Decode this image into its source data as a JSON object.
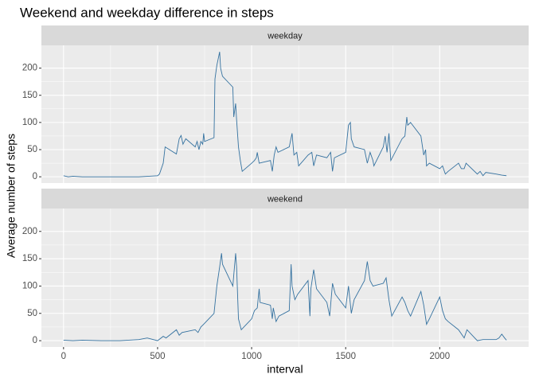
{
  "chart_data": [
    {
      "type": "line",
      "title": "Weekend and weekday difference in steps",
      "ylabel": "Average number of steps",
      "facet": "weekday",
      "xlim": [
        -117.75,
        2472.75
      ],
      "ylim": [
        -11.52,
        241.9
      ],
      "xticks": [
        0,
        500,
        1000,
        1500,
        2000
      ],
      "yticks": [
        0,
        50,
        100,
        150,
        200
      ],
      "grid": true,
      "series": [
        {
          "color": "#3572a0",
          "x": [
            0,
            25,
            50,
            100,
            200,
            300,
            400,
            500,
            510,
            530,
            540,
            600,
            615,
            625,
            635,
            650,
            700,
            710,
            720,
            730,
            740,
            745,
            750,
            800,
            805,
            815,
            830,
            835,
            845,
            900,
            905,
            915,
            920,
            930,
            940,
            950,
            1000,
            1015,
            1025,
            1030,
            1040,
            1100,
            1110,
            1120,
            1130,
            1140,
            1200,
            1215,
            1225,
            1240,
            1250,
            1300,
            1320,
            1330,
            1345,
            1400,
            1420,
            1430,
            1440,
            1500,
            1515,
            1525,
            1530,
            1545,
            1600,
            1615,
            1630,
            1645,
            1650,
            1700,
            1710,
            1720,
            1730,
            1740,
            1800,
            1815,
            1825,
            1830,
            1845,
            1900,
            1915,
            1925,
            1930,
            1945,
            2000,
            2015,
            2030,
            2045,
            2100,
            2115,
            2130,
            2140,
            2200,
            2215,
            2230,
            2245,
            2300,
            2330,
            2355
          ],
          "values": [
            2,
            0,
            1,
            0,
            0,
            0,
            0,
            2,
            5,
            25,
            55,
            42,
            70,
            76,
            60,
            70,
            55,
            65,
            50,
            65,
            60,
            80,
            65,
            72,
            180,
            205,
            230,
            200,
            185,
            165,
            110,
            135,
            105,
            55,
            30,
            10,
            25,
            30,
            35,
            45,
            25,
            30,
            10,
            40,
            55,
            45,
            55,
            80,
            40,
            45,
            20,
            40,
            45,
            20,
            40,
            35,
            45,
            10,
            35,
            45,
            95,
            100,
            70,
            55,
            50,
            25,
            45,
            30,
            20,
            55,
            75,
            45,
            80,
            30,
            70,
            75,
            110,
            95,
            100,
            75,
            40,
            50,
            20,
            25,
            15,
            20,
            5,
            10,
            25,
            15,
            15,
            25,
            5,
            10,
            2,
            8,
            5,
            3,
            2
          ]
        }
      ]
    },
    {
      "type": "line",
      "xlabel": "interval",
      "facet": "weekend",
      "xlim": [
        -117.75,
        2472.75
      ],
      "ylim": [
        -11.52,
        241.9
      ],
      "xticks": [
        0,
        500,
        1000,
        1500,
        2000
      ],
      "yticks": [
        0,
        50,
        100,
        150,
        200
      ],
      "grid": true,
      "series": [
        {
          "color": "#3572a0",
          "x": [
            0,
            50,
            100,
            200,
            300,
            400,
            445,
            500,
            530,
            545,
            600,
            615,
            630,
            700,
            715,
            730,
            745,
            800,
            815,
            830,
            840,
            845,
            900,
            915,
            920,
            930,
            945,
            1000,
            1015,
            1030,
            1040,
            1045,
            1100,
            1110,
            1115,
            1130,
            1145,
            1200,
            1210,
            1215,
            1230,
            1245,
            1300,
            1310,
            1315,
            1330,
            1345,
            1400,
            1415,
            1430,
            1445,
            1500,
            1515,
            1530,
            1545,
            1600,
            1615,
            1630,
            1645,
            1700,
            1715,
            1730,
            1745,
            1800,
            1815,
            1830,
            1845,
            1900,
            1915,
            1930,
            1945,
            2000,
            2015,
            2030,
            2045,
            2100,
            2130,
            2145,
            2200,
            2230,
            2300,
            2315,
            2330,
            2345,
            2355
          ],
          "values": [
            1,
            0,
            1,
            0,
            0,
            2,
            5,
            0,
            8,
            5,
            20,
            10,
            15,
            20,
            15,
            25,
            30,
            50,
            100,
            135,
            160,
            140,
            100,
            160,
            135,
            40,
            20,
            40,
            55,
            60,
            95,
            70,
            65,
            40,
            60,
            35,
            45,
            55,
            140,
            100,
            75,
            85,
            110,
            45,
            95,
            130,
            95,
            70,
            45,
            105,
            85,
            60,
            100,
            50,
            75,
            110,
            145,
            110,
            100,
            105,
            115,
            75,
            45,
            80,
            70,
            55,
            45,
            90,
            65,
            30,
            40,
            80,
            55,
            40,
            35,
            20,
            5,
            20,
            0,
            2,
            2,
            5,
            12,
            5,
            1
          ]
        }
      ]
    }
  ]
}
